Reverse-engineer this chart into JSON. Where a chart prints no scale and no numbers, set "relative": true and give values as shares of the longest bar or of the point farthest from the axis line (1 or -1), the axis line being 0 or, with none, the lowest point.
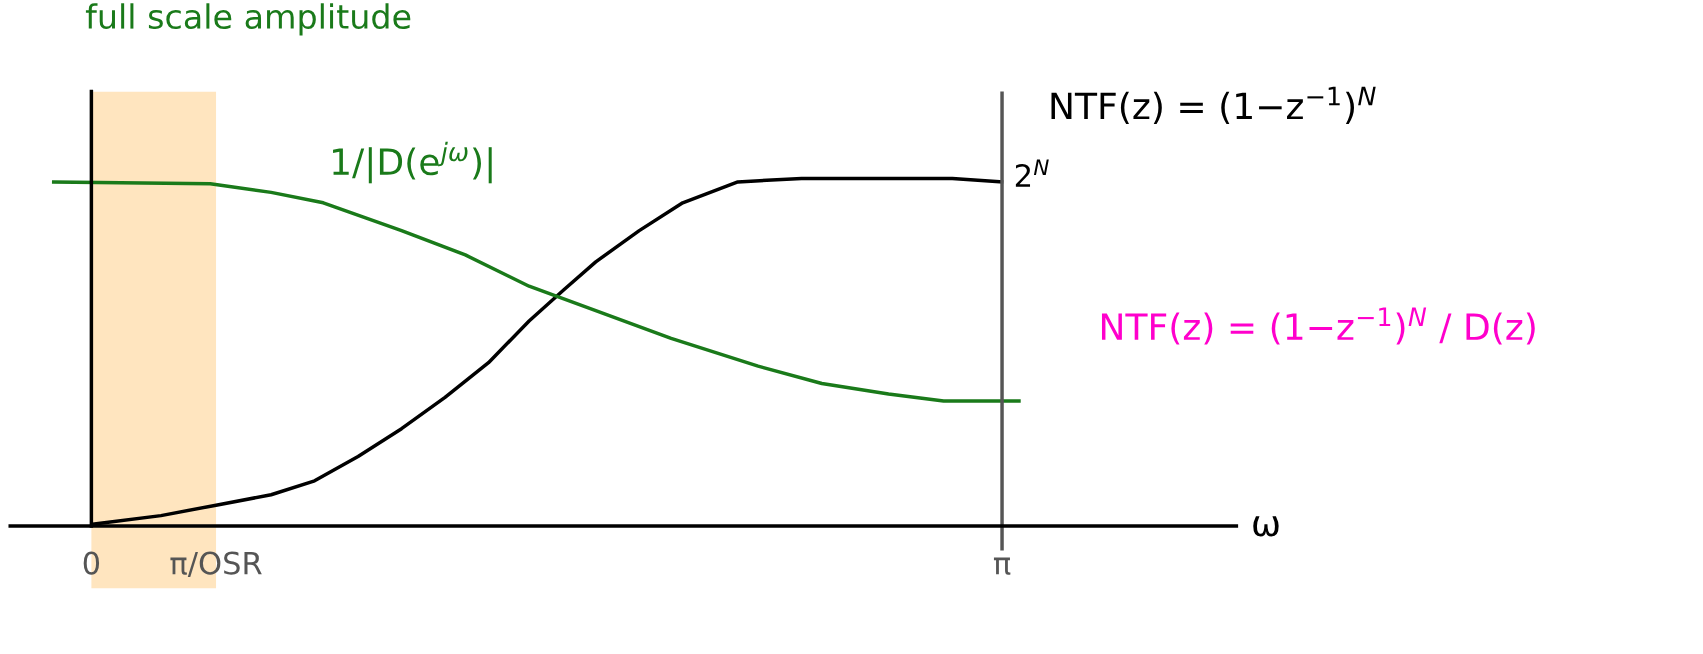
{
  "chart_data": {
    "type": "line",
    "relative": true,
    "xlabel": "ω",
    "xlim": [
      -0.28,
      3.95
    ],
    "xticks": [
      0,
      {
        "value": 0.43,
        "label": "π/OSR"
      },
      {
        "value": 3.14159,
        "label": "π"
      }
    ],
    "tick_labels": "x",
    "series": [
      {
        "name": "NTF(z) = (1−z$^{−1}$)$^{N}$",
        "color": "#000000",
        "x": [
          0.01,
          0.24,
          0.43,
          0.62,
          0.77,
          0.92,
          1.07,
          1.22,
          1.37,
          1.51,
          1.63,
          1.74,
          1.89,
          2.04,
          2.23,
          2.45,
          2.67,
          2.97,
          3.14
        ],
        "values": [
          0.006,
          0.03,
          0.06,
          0.09,
          0.13,
          0.2,
          0.28,
          0.37,
          0.47,
          0.59,
          0.68,
          0.76,
          0.85,
          0.93,
          0.99,
          1.0,
          1.0,
          1.0,
          0.99
        ]
      },
      {
        "name": "1/|D(e$^{jω}$)|",
        "color": "#1a7a1a",
        "x": [
          -0.13,
          0.41,
          0.62,
          0.8,
          1.07,
          1.29,
          1.51,
          1.74,
          2.0,
          2.3,
          2.52,
          2.75,
          2.94,
          3.2
        ],
        "values": [
          0.99,
          0.985,
          0.96,
          0.93,
          0.85,
          0.78,
          0.69,
          0.62,
          0.54,
          0.46,
          0.41,
          0.38,
          0.36,
          0.36
        ]
      }
    ],
    "ref_lines": [
      {
        "axis": "x",
        "value": 3.14159,
        "color": "#555555"
      }
    ],
    "bands": [
      {
        "axis": "x",
        "from": 0,
        "to": 0.43,
        "color": "#ff9900"
      }
    ],
    "annotations": [
      "full scale amplitude",
      {
        "text": "2$^{N}$",
        "x": 3.14159,
        "y": 1.0
      },
      "NTF(z) = (1−z$^{−1}$)$^{N}$ / D(z)"
    ],
    "marker": "none",
    "line_style": "solid",
    "grid": false,
    "legend": false
  }
}
